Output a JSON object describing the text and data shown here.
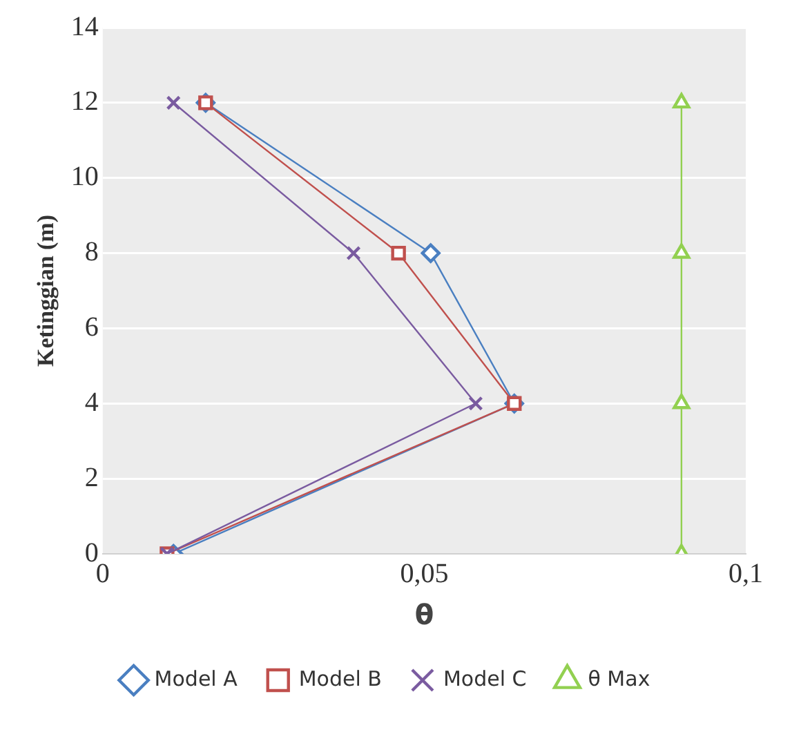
{
  "chart_data": {
    "type": "line",
    "xlabel": "θ",
    "ylabel": "Ketinggian (m)",
    "xlim": [
      0,
      0.1
    ],
    "xticks": [
      {
        "value": 0,
        "label": "0"
      },
      {
        "value": 0.05,
        "label": "0,05"
      },
      {
        "value": 0.1,
        "label": "0,1"
      }
    ],
    "ylim": [
      0,
      14
    ],
    "yticks": [
      0,
      2,
      4,
      6,
      8,
      10,
      12,
      14
    ],
    "grid": "y",
    "legend": "bottom",
    "line_style": "solid",
    "series": [
      {
        "name": "Model A",
        "color": "#4a7fc1",
        "marker": "diamond",
        "x": [
          0.011,
          0.064,
          0.051,
          0.016
        ],
        "values": [
          0,
          4,
          8,
          12
        ]
      },
      {
        "name": "Model B",
        "color": "#c0504d",
        "marker": "square",
        "x": [
          0.01,
          0.064,
          0.046,
          0.016
        ],
        "values": [
          0,
          4,
          8,
          12
        ]
      },
      {
        "name": "Model C",
        "color": "#7a5ba0",
        "marker": "cross",
        "x": [
          0.01,
          0.058,
          0.039,
          0.011
        ],
        "values": [
          0,
          4,
          8,
          12
        ]
      },
      {
        "name": "θ Max",
        "color": "#92d050",
        "marker": "triangle",
        "x": [
          0.09,
          0.09,
          0.09,
          0.09
        ],
        "values": [
          0,
          4,
          8,
          12
        ]
      }
    ]
  }
}
